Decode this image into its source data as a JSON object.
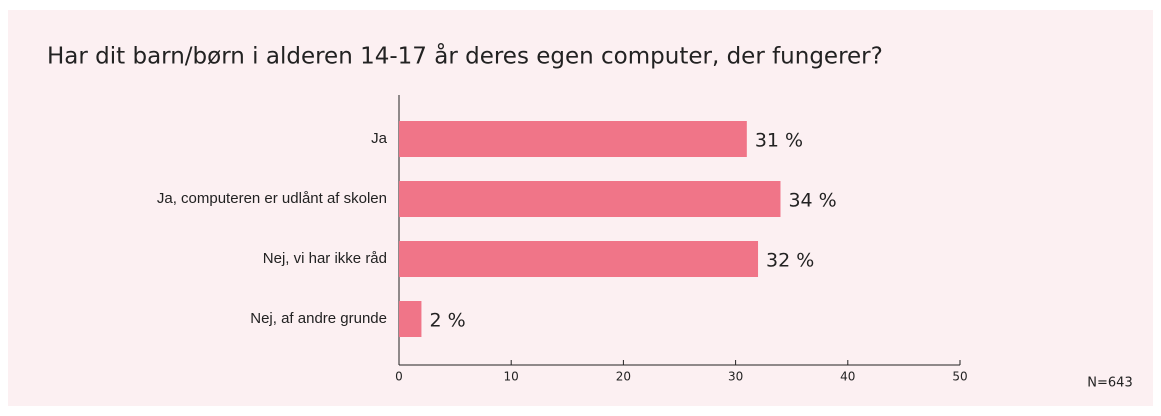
{
  "chart_data": {
    "type": "bar",
    "orientation": "horizontal",
    "title": "Har dit barn/børn i alderen 14-17 år deres egen computer, der fungerer?",
    "categories": [
      "Ja",
      "Ja, computeren er udlånt af skolen",
      "Nej, vi har ikke råd",
      "Nej, af andre grunde"
    ],
    "values": [
      31,
      34,
      32,
      2
    ],
    "value_labels": [
      "31 %",
      "34 %",
      "32 %",
      "2 %"
    ],
    "color": "#f07588",
    "xlim": [
      0,
      50
    ],
    "xticks": [
      0,
      10,
      20,
      30,
      40,
      50
    ],
    "annotation": "N=643"
  }
}
